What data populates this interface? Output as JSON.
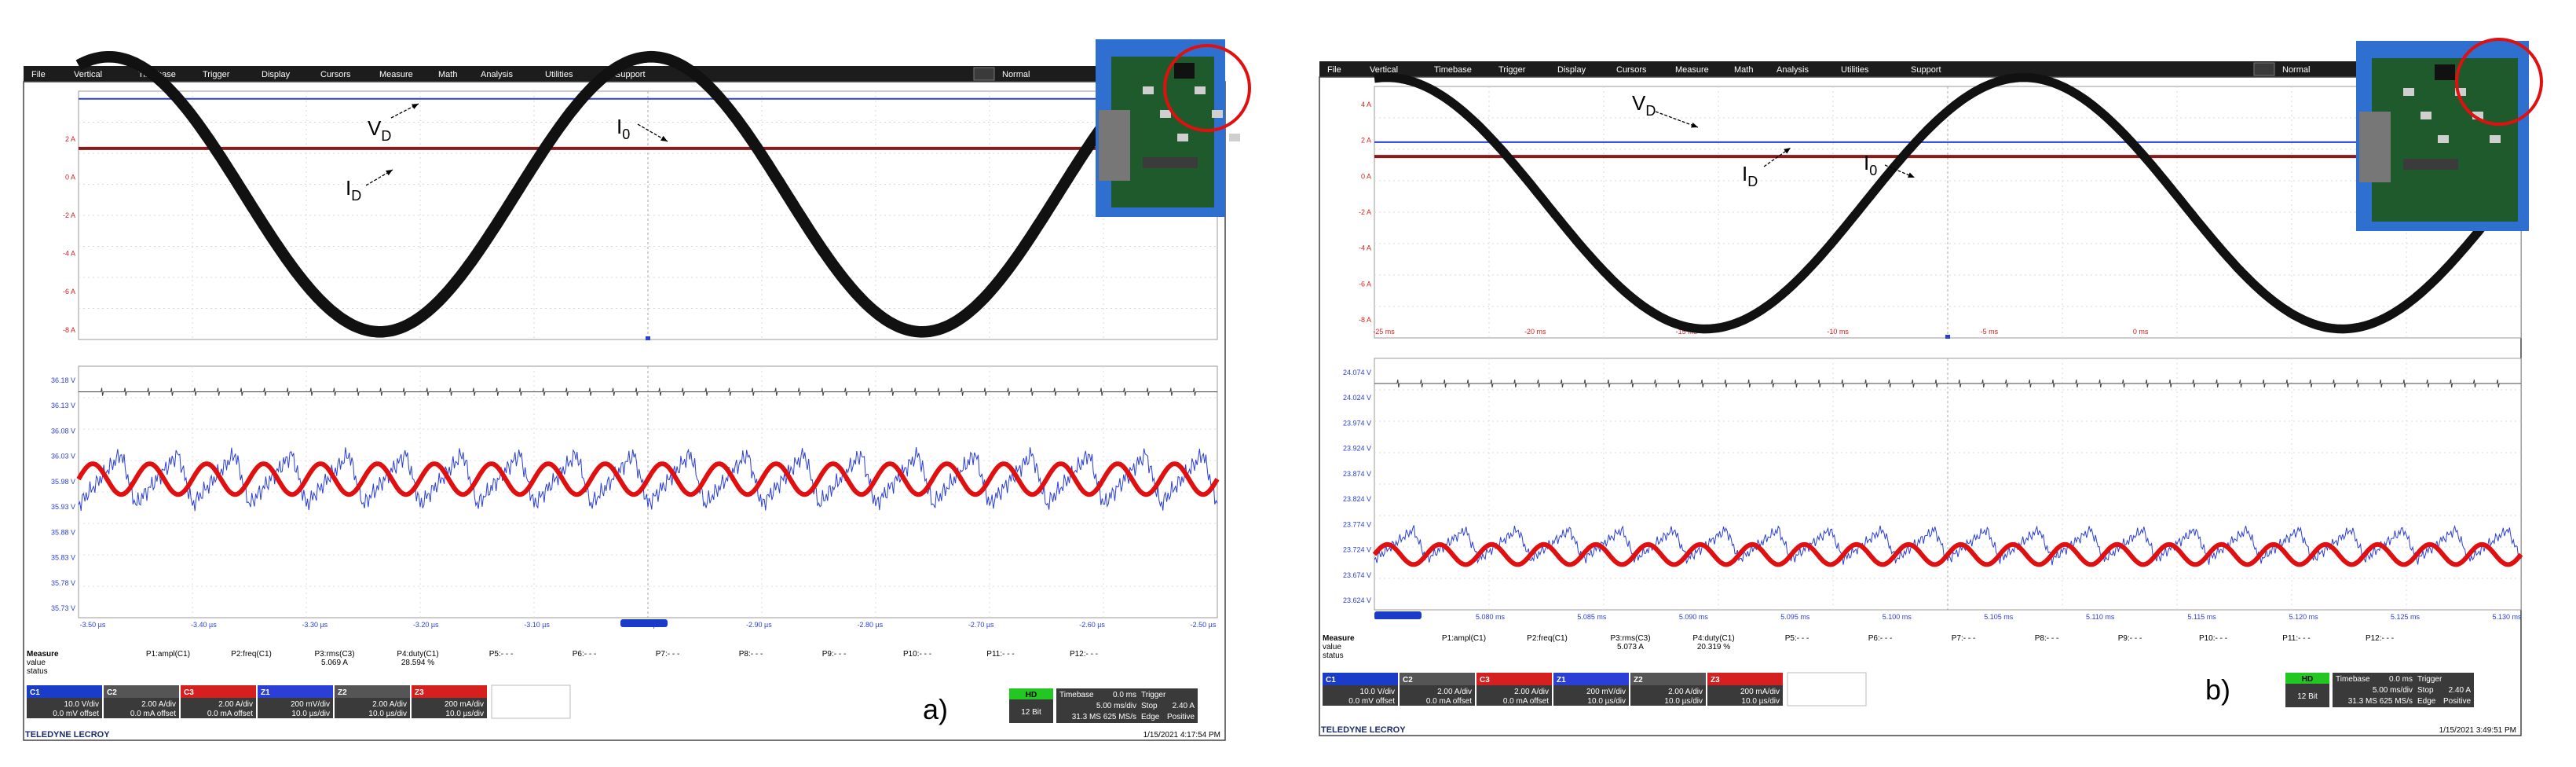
{
  "panels": [
    {
      "id": "a",
      "panel_label": "a)",
      "menu": [
        "File",
        "Vertical",
        "Timebase",
        "Trigger",
        "Display",
        "Cursors",
        "Measure",
        "Math",
        "Analysis",
        "Utilities",
        "Support"
      ],
      "mode_label": "Normal",
      "upper_y_ticks": [
        "2 A",
        "0 A",
        "-2 A",
        "-4 A",
        "-6 A",
        "-8 A"
      ],
      "upper_x_ticks": [],
      "lower_y_ticks": [
        "36.18 V",
        "36.13 V",
        "36.08 V",
        "36.03 V",
        "35.98 V",
        "35.93 V",
        "35.88 V",
        "35.83 V",
        "35.78 V",
        "35.73 V"
      ],
      "lower_x_ticks": [
        "-3.50 µs",
        "-3.40 µs",
        "-3.30 µs",
        "-3.20 µs",
        "-3.10 µs",
        "-3.00 µs",
        "-2.90 µs",
        "-2.80 µs",
        "-2.70 µs",
        "-2.60 µs",
        "-2.50 µs"
      ],
      "annotations": {
        "vd_upper": "V",
        "vd_upper_sub": "D",
        "io_upper": "I",
        "io_upper_sub": "0",
        "id_upper": "I",
        "id_upper_sub": "D",
        "io_lower": "I",
        "io_lower_sub": "0",
        "id_lower": "I",
        "id_lower_sub": "D",
        "vd_lower": "V",
        "vd_lower_sub": "D"
      },
      "measure": {
        "row_labels": [
          "Measure",
          "value",
          "status"
        ],
        "headers": [
          "P1:ampl(C1)",
          "P2:freq(C1)",
          "P3:rms(C3)",
          "P4:duty(C1)",
          "P5:- - -",
          "P6:- - -",
          "P7:- - -",
          "P8:- - -",
          "P9:- - -",
          "P10:- - -",
          "P11:- - -",
          "P12:- - -"
        ],
        "values": [
          "",
          "",
          "5.069 A",
          "28.594 %",
          "",
          "",
          "",
          "",
          "",
          "",
          "",
          ""
        ]
      },
      "channels": [
        {
          "name": "C1",
          "line1": "10.0 V/div",
          "line2": "0.0 mV offset",
          "color": "#1a3cc8"
        },
        {
          "name": "C2",
          "line1": "2.00 A/div",
          "line2": "0.0 mA offset",
          "color": "#555555"
        },
        {
          "name": "C3",
          "line1": "2.00 A/div",
          "line2": "0.0 mA offset",
          "color": "#d62020"
        },
        {
          "name": "Z1",
          "line1": "200 mV/div",
          "line2": "10.0 µs/div",
          "color": "#2b3fd6"
        },
        {
          "name": "Z2",
          "line1": "2.00 A/div",
          "line2": "10.0 µs/div",
          "color": "#555555"
        },
        {
          "name": "Z3",
          "line1": "200 mA/div",
          "line2": "10.0 µs/div",
          "color": "#d62020"
        }
      ],
      "hd": {
        "badge": "HD",
        "value": "12 Bit"
      },
      "timebase": {
        "label": "Timebase",
        "delay": "0.0 ms",
        "div": "5.00 ms/div",
        "samples": "31.3 MS  625 MS/s"
      },
      "trigger": {
        "label": "Trigger",
        "mode": "Stop",
        "type": "Edge",
        "level": "2.40 A",
        "slope": "Positive"
      },
      "brand": "TELEDYNE LECROY",
      "timestamp": "1/15/2021 4:17:54 PM",
      "photo_alt": "PCB photo"
    },
    {
      "id": "b",
      "panel_label": "b)",
      "menu": [
        "File",
        "Vertical",
        "Timebase",
        "Trigger",
        "Display",
        "Cursors",
        "Measure",
        "Math",
        "Analysis",
        "Utilities",
        "Support"
      ],
      "mode_label": "Normal",
      "upper_y_ticks": [
        "4 A",
        "2 A",
        "0 A",
        "-2 A",
        "-4 A",
        "-6 A",
        "-8 A"
      ],
      "upper_x_ticks": [
        "-25 ms",
        "-20 ms",
        "-15 ms",
        "-10 ms",
        "-5 ms",
        "0 ms"
      ],
      "lower_y_ticks": [
        "24.074 V",
        "24.024 V",
        "23.974 V",
        "23.924 V",
        "23.874 V",
        "23.824 V",
        "23.774 V",
        "23.724 V",
        "23.674 V",
        "23.624 V"
      ],
      "lower_x_ticks": [
        "5.075 ms",
        "5.080 ms",
        "5.085 ms",
        "5.090 ms",
        "5.095 ms",
        "5.100 ms",
        "5.105 ms",
        "5.110 ms",
        "5.115 ms",
        "5.120 ms",
        "5.125 ms",
        "5.130 ms"
      ],
      "annotations": {
        "vd_upper": "V",
        "vd_upper_sub": "D",
        "io_upper": "I",
        "io_upper_sub": "0",
        "id_upper": "I",
        "id_upper_sub": "D",
        "io_lower": "I",
        "io_lower_sub": "0",
        "id_lower": "I",
        "id_lower_sub": "D",
        "vd_lower": "V",
        "vd_lower_sub": "D"
      },
      "measure": {
        "row_labels": [
          "Measure",
          "value",
          "status"
        ],
        "headers": [
          "P1:ampl(C1)",
          "P2:freq(C1)",
          "P3:rms(C3)",
          "P4:duty(C1)",
          "P5:- - -",
          "P6:- - -",
          "P7:- - -",
          "P8:- - -",
          "P9:- - -",
          "P10:- - -",
          "P11:- - -",
          "P12:- - -"
        ],
        "values": [
          "",
          "",
          "5.073 A",
          "20.319 %",
          "",
          "",
          "",
          "",
          "",
          "",
          "",
          ""
        ]
      },
      "channels": [
        {
          "name": "C1",
          "line1": "10.0 V/div",
          "line2": "0.0 mV offset",
          "color": "#1a3cc8"
        },
        {
          "name": "C2",
          "line1": "2.00 A/div",
          "line2": "0.0 mA offset",
          "color": "#555555"
        },
        {
          "name": "C3",
          "line1": "2.00 A/div",
          "line2": "0.0 mA offset",
          "color": "#d62020"
        },
        {
          "name": "Z1",
          "line1": "200 mV/div",
          "line2": "10.0 µs/div",
          "color": "#2b3fd6"
        },
        {
          "name": "Z2",
          "line1": "2.00 A/div",
          "line2": "10.0 µs/div",
          "color": "#555555"
        },
        {
          "name": "Z3",
          "line1": "200 mA/div",
          "line2": "10.0 µs/div",
          "color": "#d62020"
        }
      ],
      "hd": {
        "badge": "HD",
        "value": "12 Bit"
      },
      "timebase": {
        "label": "Timebase",
        "delay": "0.0 ms",
        "div": "5.00 ms/div",
        "samples": "31.3 MS  625 MS/s"
      },
      "trigger": {
        "label": "Trigger",
        "mode": "Stop",
        "type": "Edge",
        "level": "2.40 A",
        "slope": "Positive"
      },
      "brand": "TELEDYNE LECROY",
      "timestamp": "1/15/2021 3:49:51 PM",
      "photo_alt": "PCB photo"
    }
  ],
  "chart_data": [
    {
      "type": "line",
      "panel": "a",
      "title": "",
      "series": [
        {
          "name": "I0",
          "color": "#111111",
          "kind": "sine",
          "amplitude_A": 7.2,
          "offset_A": -0.9,
          "cycles_shown": 2.1,
          "band_A": 0.6
        },
        {
          "name": "VD",
          "color": "#2b3fd6",
          "kind": "flat",
          "level_A": 4.1
        },
        {
          "name": "ID",
          "color": "#8b1a1a",
          "kind": "flat",
          "level_A": 1.5
        }
      ],
      "ylim": [
        -8.5,
        4.5
      ],
      "grid": true
    },
    {
      "type": "line",
      "panel": "a",
      "title": "",
      "series": [
        {
          "name": "I0",
          "color": "#444444",
          "kind": "flat",
          "level_V": 36.15
        },
        {
          "name": "VD",
          "color": "#2b3fd6",
          "kind": "ripple",
          "center_V": 35.98,
          "amplitude_V": 0.05,
          "cycles": 20
        },
        {
          "name": "ID",
          "color": "#e01010",
          "kind": "ripple",
          "center_V": 35.98,
          "amplitude_V": 0.03,
          "cycles": 20
        }
      ],
      "ylim": [
        35.71,
        36.2
      ],
      "grid": true
    },
    {
      "type": "line",
      "panel": "b",
      "title": "",
      "series": [
        {
          "name": "I0",
          "color": "#111111",
          "kind": "sine",
          "amplitude_A": 7.0,
          "offset_A": -1.5,
          "cycles_shown": 1.8,
          "band_A": 0.5
        },
        {
          "name": "VD",
          "color": "#2b3fd6",
          "kind": "flat",
          "level_A": 1.9
        },
        {
          "name": "ID",
          "color": "#8b1a1a",
          "kind": "flat",
          "level_A": 1.1
        }
      ],
      "ylim": [
        -9,
        5
      ],
      "grid": true
    },
    {
      "type": "line",
      "panel": "b",
      "title": "",
      "series": [
        {
          "name": "I0",
          "color": "#444444",
          "kind": "flat",
          "level_V": 24.05
        },
        {
          "name": "VD",
          "color": "#2b3fd6",
          "kind": "ripple",
          "center_V": 23.73,
          "amplitude_V": 0.03,
          "cycles": 22
        },
        {
          "name": "ID",
          "color": "#e01010",
          "kind": "ripple",
          "center_V": 23.71,
          "amplitude_V": 0.02,
          "cycles": 22
        }
      ],
      "ylim": [
        23.6,
        24.1
      ],
      "grid": true
    }
  ]
}
